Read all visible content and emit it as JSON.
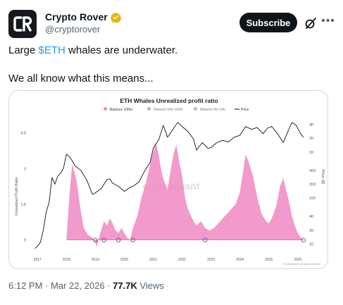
{
  "author": {
    "name": "Crypto Rover",
    "handle": "@cryptorover",
    "avatar_text": "CR",
    "verified_color": "#e2b719"
  },
  "actions": {
    "subscribe_label": "Subscribe",
    "grok_icon": "grok-icon",
    "more_icon": "more-icon"
  },
  "tweet": {
    "line1_before": "Large ",
    "cashtag": "$ETH",
    "line1_after": " whales are underwater.",
    "line2": "We all know what this means..."
  },
  "meta": {
    "time": "6:12 PM",
    "separator": " · ",
    "date": "Mar 22, 2026",
    "views_count": "77.7K",
    "views_label": " Views"
  },
  "colors": {
    "cashtag": "#1d9bf0",
    "ratio_fill": "#ee88c2",
    "price_line": "#111111",
    "muted": "#536471"
  },
  "chart_data": {
    "type": "area",
    "title": "ETH Whales Unrealized profit ratio",
    "legend": [
      {
        "name": "Balance 100k+",
        "color": "#ee88c2",
        "style": "area"
      },
      {
        "name": "Balance 10k~100k",
        "color": "#cccccc",
        "style": "strikethrough"
      },
      {
        "name": "Balance 1k~10k",
        "color": "#cccccc",
        "style": "strikethrough"
      },
      {
        "name": "Price",
        "color": "#111111",
        "style": "line"
      }
    ],
    "legend_position": "top-center",
    "watermark": "cryptoquant",
    "footer": "© CryptoQuant. All rights reserved",
    "ylabel_left": "Unrealized Profit Ratio",
    "ylabel_right": "Price ($)",
    "left_ticks": [
      0,
      1.5,
      3,
      4.5
    ],
    "right_ticks": [
      "10",
      "20",
      "40",
      "100",
      "200",
      "400",
      "1K",
      "2K",
      "4K"
    ],
    "x_ticks": [
      "2017",
      "2018",
      "2019",
      "2020",
      "2021",
      "2022",
      "2023",
      "2024",
      "2025",
      "2026"
    ],
    "right_scale": "log",
    "grid": false,
    "ratio_series": {
      "name": "Balance 100k+",
      "x": [
        2018.0,
        2018.1,
        2018.2,
        2018.35,
        2018.5,
        2018.6,
        2018.75,
        2018.9,
        2019.0,
        2019.05,
        2019.1,
        2019.2,
        2019.3,
        2019.4,
        2019.5,
        2019.6,
        2019.7,
        2019.8,
        2019.9,
        2020.0,
        2020.1,
        2020.2,
        2020.3,
        2020.45,
        2020.6,
        2020.75,
        2020.9,
        2021.0,
        2021.1,
        2021.2,
        2021.3,
        2021.4,
        2021.5,
        2021.6,
        2021.7,
        2021.8,
        2021.9,
        2022.0,
        2022.1,
        2022.2,
        2022.35,
        2022.5,
        2022.65,
        2022.8,
        2022.95,
        2023.1,
        2023.25,
        2023.4,
        2023.55,
        2023.7,
        2023.85,
        2024.0,
        2024.1,
        2024.2,
        2024.3,
        2024.45,
        2024.6,
        2024.75,
        2024.9,
        2025.0,
        2025.1,
        2025.25,
        2025.4,
        2025.5,
        2025.6,
        2025.7,
        2025.8,
        2025.9,
        2026.0,
        2026.1,
        2026.2
      ],
      "y": [
        0,
        1.8,
        3.2,
        2.5,
        1.2,
        0.5,
        0.2,
        0.1,
        -0.1,
        -0.3,
        0,
        0.4,
        0.8,
        0.6,
        0.9,
        0.7,
        0.4,
        0.3,
        0.5,
        0.3,
        0.1,
        0,
        0.5,
        1.0,
        1.8,
        2.4,
        3.2,
        3.7,
        4.1,
        3.5,
        2.8,
        2.4,
        2.1,
        2.9,
        3.6,
        4.0,
        3.3,
        2.7,
        1.8,
        1.3,
        0.9,
        0.6,
        0.8,
        0.5,
        0.4,
        0.5,
        0.7,
        0.9,
        1.1,
        1.3,
        1.5,
        2.0,
        2.8,
        3.6,
        3.3,
        2.7,
        1.8,
        1.1,
        0.8,
        0.7,
        0.9,
        1.4,
        2.3,
        2.6,
        2.1,
        1.6,
        1.0,
        0.6,
        0.3,
        0.1,
        0
      ]
    },
    "price_series": {
      "name": "Price",
      "x": [
        2016.9,
        2017.0,
        2017.1,
        2017.2,
        2017.3,
        2017.4,
        2017.5,
        2017.6,
        2017.7,
        2017.8,
        2017.9,
        2018.0,
        2018.1,
        2018.2,
        2018.3,
        2018.5,
        2018.7,
        2018.9,
        2019.0,
        2019.2,
        2019.4,
        2019.5,
        2019.6,
        2019.8,
        2020.0,
        2020.2,
        2020.3,
        2020.5,
        2020.7,
        2020.9,
        2021.0,
        2021.2,
        2021.35,
        2021.5,
        2021.7,
        2021.85,
        2022.0,
        2022.2,
        2022.4,
        2022.5,
        2022.7,
        2022.9,
        2023.0,
        2023.2,
        2023.4,
        2023.6,
        2023.8,
        2024.0,
        2024.2,
        2024.4,
        2024.6,
        2024.8,
        2024.95,
        2025.1,
        2025.3,
        2025.5,
        2025.65,
        2025.8,
        2025.95,
        2026.1,
        2026.2
      ],
      "y": [
        8,
        9,
        11,
        20,
        50,
        80,
        280,
        200,
        300,
        350,
        450,
        900,
        800,
        650,
        500,
        400,
        250,
        120,
        130,
        160,
        250,
        260,
        210,
        180,
        140,
        170,
        180,
        220,
        380,
        600,
        1200,
        1900,
        3800,
        2100,
        3200,
        4400,
        3600,
        2800,
        1900,
        1100,
        1600,
        1200,
        1250,
        1600,
        1800,
        1650,
        2100,
        2300,
        3600,
        3100,
        3400,
        2500,
        3300,
        3600,
        2500,
        1600,
        2700,
        4400,
        3800,
        2500,
        2100
      ]
    },
    "markers_x": [
      2019.0,
      2019.3,
      2019.8,
      2020.3,
      2022.8,
      2026.2
    ]
  }
}
